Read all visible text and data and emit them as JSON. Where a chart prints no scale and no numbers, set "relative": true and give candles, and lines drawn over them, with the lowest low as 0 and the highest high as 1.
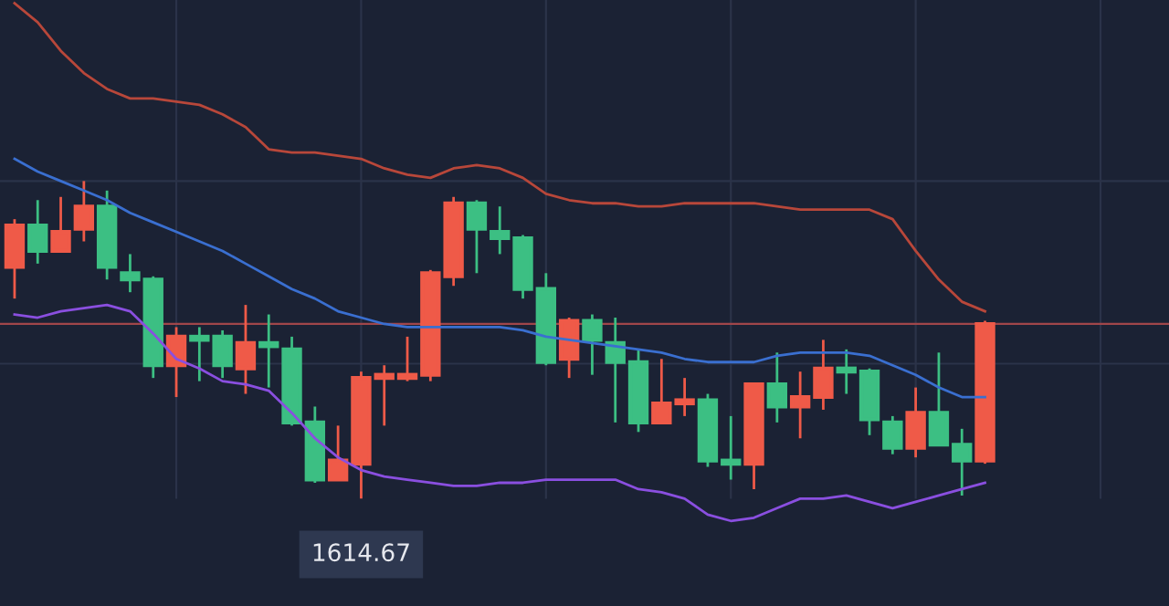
{
  "chart_data": {
    "type": "candlestick",
    "relative": true,
    "grid": true,
    "categories": [
      null,
      null,
      null,
      null,
      null,
      null,
      null,
      null,
      null,
      null,
      null,
      null,
      null,
      null,
      null,
      null,
      null,
      null,
      null,
      null,
      null,
      null,
      null,
      null,
      null,
      null,
      null,
      null,
      null,
      null,
      null,
      null,
      null,
      null,
      null,
      null,
      null,
      null,
      null,
      null,
      null,
      null,
      null
    ],
    "ohlc": [
      [
        0.73,
        0.88,
        0.63,
        0.86
      ],
      [
        0.86,
        0.94,
        0.74,
        0.78
      ],
      [
        0.78,
        0.95,
        0.78,
        0.84
      ],
      [
        0.85,
        1.0,
        0.81,
        0.92
      ],
      [
        0.92,
        0.97,
        0.69,
        0.73
      ],
      [
        0.71,
        0.77,
        0.65,
        0.69
      ],
      [
        0.69,
        0.7,
        0.38,
        0.42
      ],
      [
        0.42,
        0.54,
        0.32,
        0.51
      ],
      [
        0.51,
        0.54,
        0.37,
        0.5
      ],
      [
        0.51,
        0.53,
        0.38,
        0.42
      ],
      [
        0.41,
        0.61,
        0.33,
        0.49
      ],
      [
        0.49,
        0.58,
        0.35,
        0.48
      ],
      [
        0.47,
        0.51,
        0.23,
        0.24
      ],
      [
        0.24,
        0.29,
        0.05,
        0.06
      ],
      [
        0.06,
        0.23,
        0.06,
        0.12
      ],
      [
        0.11,
        0.4,
        0.0,
        0.38
      ],
      [
        0.38,
        0.42,
        0.23,
        0.39
      ],
      [
        0.38,
        0.51,
        0.37,
        0.39
      ],
      [
        0.39,
        0.72,
        0.37,
        0.71
      ],
      [
        0.7,
        0.95,
        0.67,
        0.93
      ],
      [
        0.93,
        0.94,
        0.71,
        0.85
      ],
      [
        0.84,
        0.92,
        0.77,
        0.82
      ],
      [
        0.82,
        0.83,
        0.63,
        0.66
      ],
      [
        0.66,
        0.71,
        0.42,
        0.43
      ],
      [
        0.44,
        0.57,
        0.38,
        0.56
      ],
      [
        0.56,
        0.58,
        0.39,
        0.5
      ],
      [
        0.49,
        0.57,
        0.24,
        0.43
      ],
      [
        0.43,
        0.47,
        0.21,
        0.24
      ],
      [
        0.24,
        0.44,
        0.24,
        0.3
      ],
      [
        0.3,
        0.38,
        0.26,
        0.31
      ],
      [
        0.31,
        0.33,
        0.1,
        0.12
      ],
      [
        0.12,
        0.26,
        0.06,
        0.11
      ],
      [
        0.11,
        0.36,
        0.03,
        0.36
      ],
      [
        0.36,
        0.46,
        0.24,
        0.29
      ],
      [
        0.29,
        0.4,
        0.19,
        0.32
      ],
      [
        0.32,
        0.5,
        0.28,
        0.41
      ],
      [
        0.41,
        0.47,
        0.33,
        0.4
      ],
      [
        0.4,
        0.41,
        0.2,
        0.25
      ],
      [
        0.24,
        0.26,
        0.14,
        0.16
      ],
      [
        0.16,
        0.35,
        0.13,
        0.27
      ],
      [
        0.27,
        0.46,
        0.17,
        0.17
      ],
      [
        0.17,
        0.22,
        0.01,
        0.12
      ],
      [
        0.12,
        0.56,
        0.11,
        0.55
      ]
    ],
    "colors": [
      "#ef5a48",
      "#3cbf83",
      "#ef5a48",
      "#ef5a48",
      "#3cbf83",
      "#3cbf83",
      "#3cbf83",
      "#ef5a48",
      "#3cbf83",
      "#3cbf83",
      "#ef5a48",
      "#3cbf83",
      "#3cbf83",
      "#3cbf83",
      "#ef5a48",
      "#ef5a48",
      "#ef5a48",
      "#ef5a48",
      "#ef5a48",
      "#ef5a48",
      "#3cbf83",
      "#3cbf83",
      "#3cbf83",
      "#3cbf83",
      "#ef5a48",
      "#3cbf83",
      "#3cbf83",
      "#3cbf83",
      "#ef5a48",
      "#ef5a48",
      "#3cbf83",
      "#3cbf83",
      "#ef5a48",
      "#3cbf83",
      "#ef5a48",
      "#ef5a48",
      "#3cbf83",
      "#3cbf83",
      "#3cbf83",
      "#ef5a48",
      "#3cbf83",
      "#3cbf83",
      "#ef5a48"
    ],
    "series": [
      {
        "type": "line",
        "color": "#b8473a",
        "values": [
          1.56,
          1.5,
          1.41,
          1.34,
          1.29,
          1.26,
          1.26,
          1.25,
          1.24,
          1.21,
          1.17,
          1.1,
          1.09,
          1.09,
          1.08,
          1.07,
          1.04,
          1.02,
          1.01,
          1.04,
          1.05,
          1.04,
          1.01,
          0.96,
          0.94,
          0.93,
          0.93,
          0.92,
          0.92,
          0.93,
          0.93,
          0.93,
          0.93,
          0.92,
          0.91,
          0.91,
          0.91,
          0.91,
          0.88,
          0.78,
          0.69,
          0.62,
          0.59
        ]
      },
      {
        "type": "line",
        "color": "#3a6fd0",
        "values": [
          1.07,
          1.03,
          1.0,
          0.97,
          0.94,
          0.9,
          0.87,
          0.84,
          0.81,
          0.78,
          0.74,
          0.7,
          0.66,
          0.63,
          0.59,
          0.57,
          0.55,
          0.54,
          0.54,
          0.54,
          0.54,
          0.54,
          0.53,
          0.51,
          0.5,
          0.49,
          0.48,
          0.47,
          0.46,
          0.44,
          0.43,
          0.43,
          0.43,
          0.45,
          0.46,
          0.46,
          0.46,
          0.45,
          0.42,
          0.39,
          0.35,
          0.32,
          0.32
        ]
      },
      {
        "type": "line",
        "color": "#8a4fe0",
        "values": [
          0.58,
          0.57,
          0.59,
          0.6,
          0.61,
          0.59,
          0.52,
          0.44,
          0.41,
          0.37,
          0.36,
          0.34,
          0.27,
          0.19,
          0.13,
          0.09,
          0.07,
          0.06,
          0.05,
          0.04,
          0.04,
          0.05,
          0.05,
          0.06,
          0.06,
          0.06,
          0.06,
          0.03,
          0.02,
          0.0,
          -0.05,
          -0.07,
          -0.06,
          -0.03,
          0.0,
          0.0,
          0.01,
          -0.01,
          -0.03,
          -0.01,
          0.01,
          0.03,
          0.05
        ]
      }
    ],
    "ref_lines": [
      {
        "axis": "y",
        "value": 0.55,
        "color": "#a0464a"
      }
    ],
    "annotations": [
      "1614.67"
    ]
  }
}
